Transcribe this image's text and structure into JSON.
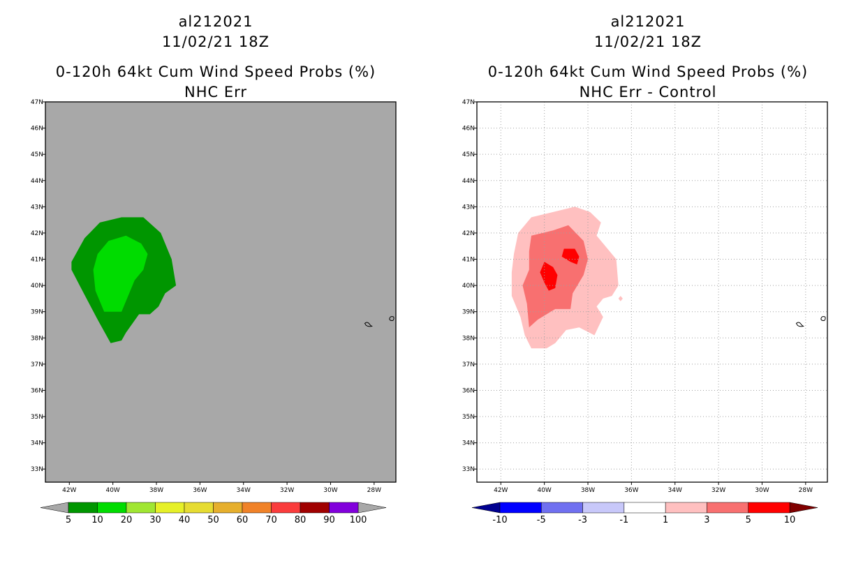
{
  "panels": [
    {
      "id": "left",
      "title_lines": [
        "al212021",
        "11/02/21 18Z",
        "0-120h 64kt Cum Wind Speed Probs (%)",
        "NHC Err"
      ],
      "colorbar": {
        "labels": [
          "5",
          "10",
          "20",
          "30",
          "40",
          "50",
          "60",
          "70",
          "80",
          "90",
          "100"
        ],
        "colors": [
          "#009600",
          "#00dc00",
          "#a0e632",
          "#e6f028",
          "#e6dc32",
          "#e6af2d",
          "#f08228",
          "#fa3c3c",
          "#a00000",
          "#8200dc"
        ],
        "end_colors": [
          "#a8a8a8",
          "#a8a8a8"
        ]
      }
    },
    {
      "id": "right",
      "title_lines": [
        "al212021",
        "11/02/21 18Z",
        "0-120h 64kt Cum Wind Speed Probs (%)",
        "NHC Err - Control"
      ],
      "colorbar": {
        "labels": [
          "-10",
          "-5",
          "-3",
          "-1",
          "1",
          "3",
          "5",
          "10"
        ],
        "colors": [
          "#0000ff",
          "#7070f0",
          "#c8c8fa",
          "#ffffff",
          "#ffc0c0",
          "#f87070",
          "#ff0000"
        ],
        "end_colors": [
          "#000090",
          "#800000"
        ]
      }
    }
  ],
  "chart_data": [
    {
      "type": "heatmap",
      "title": "0-120h 64kt Cum Wind Speed Probs (%) - NHC Err",
      "x_ticks": [
        "42W",
        "40W",
        "38W",
        "36W",
        "34W",
        "32W",
        "30W",
        "28W"
      ],
      "y_ticks": [
        "47N",
        "46N",
        "45N",
        "44N",
        "43N",
        "42N",
        "41N",
        "40N",
        "39N",
        "38N",
        "37N",
        "36N",
        "35N",
        "34N",
        "33N"
      ],
      "xlim_lon": [
        -43.1,
        -27.0
      ],
      "ylim_lat": [
        32.5,
        47.0
      ],
      "background_color": "#a8a8a8",
      "grid": false,
      "contours": [
        {
          "level": "5-10",
          "color": "#009600",
          "lonlat": [
            [
              -41.9,
              40.9
            ],
            [
              -41.3,
              41.8
            ],
            [
              -40.6,
              42.4
            ],
            [
              -39.6,
              42.6
            ],
            [
              -38.6,
              42.6
            ],
            [
              -37.8,
              42.0
            ],
            [
              -37.3,
              41.0
            ],
            [
              -37.1,
              40.0
            ],
            [
              -37.6,
              39.7
            ],
            [
              -37.9,
              39.2
            ],
            [
              -38.3,
              38.9
            ],
            [
              -38.8,
              38.9
            ],
            [
              -39.4,
              38.2
            ],
            [
              -39.6,
              37.9
            ],
            [
              -40.1,
              37.8
            ],
            [
              -40.7,
              38.7
            ],
            [
              -41.4,
              39.8
            ],
            [
              -41.9,
              40.6
            ]
          ]
        },
        {
          "level": "10-20",
          "color": "#00dc00",
          "lonlat": [
            [
              -40.9,
              40.6
            ],
            [
              -40.7,
              41.2
            ],
            [
              -40.2,
              41.7
            ],
            [
              -39.4,
              41.9
            ],
            [
              -38.7,
              41.6
            ],
            [
              -38.4,
              41.2
            ],
            [
              -38.6,
              40.6
            ],
            [
              -39.0,
              40.2
            ],
            [
              -39.3,
              39.6
            ],
            [
              -39.6,
              39.0
            ],
            [
              -40.4,
              39.0
            ],
            [
              -40.8,
              39.8
            ]
          ]
        }
      ]
    },
    {
      "type": "heatmap",
      "title": "0-120h 64kt Cum Wind Speed Probs (%) - NHC Err - Control",
      "x_ticks": [
        "42W",
        "40W",
        "38W",
        "36W",
        "34W",
        "32W",
        "30W",
        "28W"
      ],
      "y_ticks": [
        "47N",
        "46N",
        "45N",
        "44N",
        "43N",
        "42N",
        "41N",
        "40N",
        "39N",
        "38N",
        "37N",
        "36N",
        "35N",
        "34N",
        "33N"
      ],
      "xlim_lon": [
        -43.1,
        -27.0
      ],
      "ylim_lat": [
        32.5,
        47.0
      ],
      "background_color": "#ffffff",
      "grid": true,
      "contours": [
        {
          "level": "1-3",
          "color": "#ffc0c0",
          "lonlat": [
            [
              -41.2,
              42.0
            ],
            [
              -40.6,
              42.6
            ],
            [
              -39.6,
              42.8
            ],
            [
              -38.6,
              43.0
            ],
            [
              -37.9,
              42.8
            ],
            [
              -37.4,
              42.4
            ],
            [
              -37.6,
              41.9
            ],
            [
              -37.2,
              41.5
            ],
            [
              -36.7,
              41.0
            ],
            [
              -36.6,
              40.0
            ],
            [
              -36.9,
              39.6
            ],
            [
              -37.3,
              39.5
            ],
            [
              -37.6,
              39.2
            ],
            [
              -37.3,
              38.8
            ],
            [
              -37.7,
              38.1
            ],
            [
              -38.4,
              38.4
            ],
            [
              -39.0,
              38.3
            ],
            [
              -39.5,
              37.8
            ],
            [
              -39.9,
              37.6
            ],
            [
              -40.6,
              37.6
            ],
            [
              -40.9,
              38.1
            ],
            [
              -41.1,
              38.8
            ],
            [
              -41.5,
              39.6
            ],
            [
              -41.5,
              40.5
            ],
            [
              -41.4,
              41.2
            ]
          ]
        },
        {
          "level": "3-5",
          "color": "#f87070",
          "lonlat": [
            [
              -40.6,
              41.9
            ],
            [
              -39.6,
              42.1
            ],
            [
              -38.9,
              42.3
            ],
            [
              -38.2,
              41.7
            ],
            [
              -38.0,
              41.0
            ],
            [
              -38.2,
              40.4
            ],
            [
              -38.7,
              39.7
            ],
            [
              -38.8,
              39.1
            ],
            [
              -39.5,
              39.1
            ],
            [
              -39.9,
              38.9
            ],
            [
              -40.3,
              38.7
            ],
            [
              -40.7,
              38.4
            ],
            [
              -40.8,
              39.3
            ],
            [
              -41.0,
              40.0
            ],
            [
              -40.7,
              40.6
            ],
            [
              -40.7,
              41.3
            ]
          ]
        },
        {
          "level": "5-10",
          "color": "#ff0000",
          "lonlat": [
            [
              -40.0,
              40.9
            ],
            [
              -39.6,
              40.7
            ],
            [
              -39.4,
              40.4
            ],
            [
              -39.5,
              39.9
            ],
            [
              -39.8,
              39.8
            ],
            [
              -40.0,
              40.1
            ],
            [
              -40.2,
              40.5
            ]
          ]
        },
        {
          "level": "5-10",
          "color": "#ff0000",
          "lonlat": [
            [
              -39.1,
              41.4
            ],
            [
              -38.6,
              41.4
            ],
            [
              -38.4,
              41.1
            ],
            [
              -38.5,
              40.8
            ],
            [
              -38.8,
              40.9
            ],
            [
              -39.2,
              41.1
            ]
          ]
        },
        {
          "level": "1-3",
          "color": "#ffc0c0",
          "lonlat": [
            [
              -36.5,
              39.6
            ],
            [
              -36.4,
              39.5
            ],
            [
              -36.5,
              39.4
            ],
            [
              -36.6,
              39.5
            ]
          ]
        }
      ]
    }
  ]
}
